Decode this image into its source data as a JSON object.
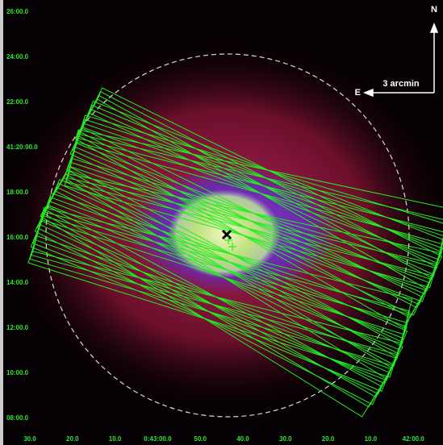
{
  "axes": {
    "left_labels": [
      "26:00.0",
      "24:00.0",
      "22:00.0",
      "41:20:00.0",
      "18:00.0",
      "16:00.0",
      "14:00.0",
      "12:00.0",
      "10:00.0",
      "08:00.0"
    ],
    "bottom_labels": [
      "30.0",
      "20.0",
      "10.0",
      "0:43:00.0",
      "50.0",
      "40.0",
      "30.0",
      "20.0",
      "10.0",
      "42:00.0"
    ]
  },
  "compass": {
    "north": "N",
    "east": "E",
    "scale": "3 arcmin"
  }
}
